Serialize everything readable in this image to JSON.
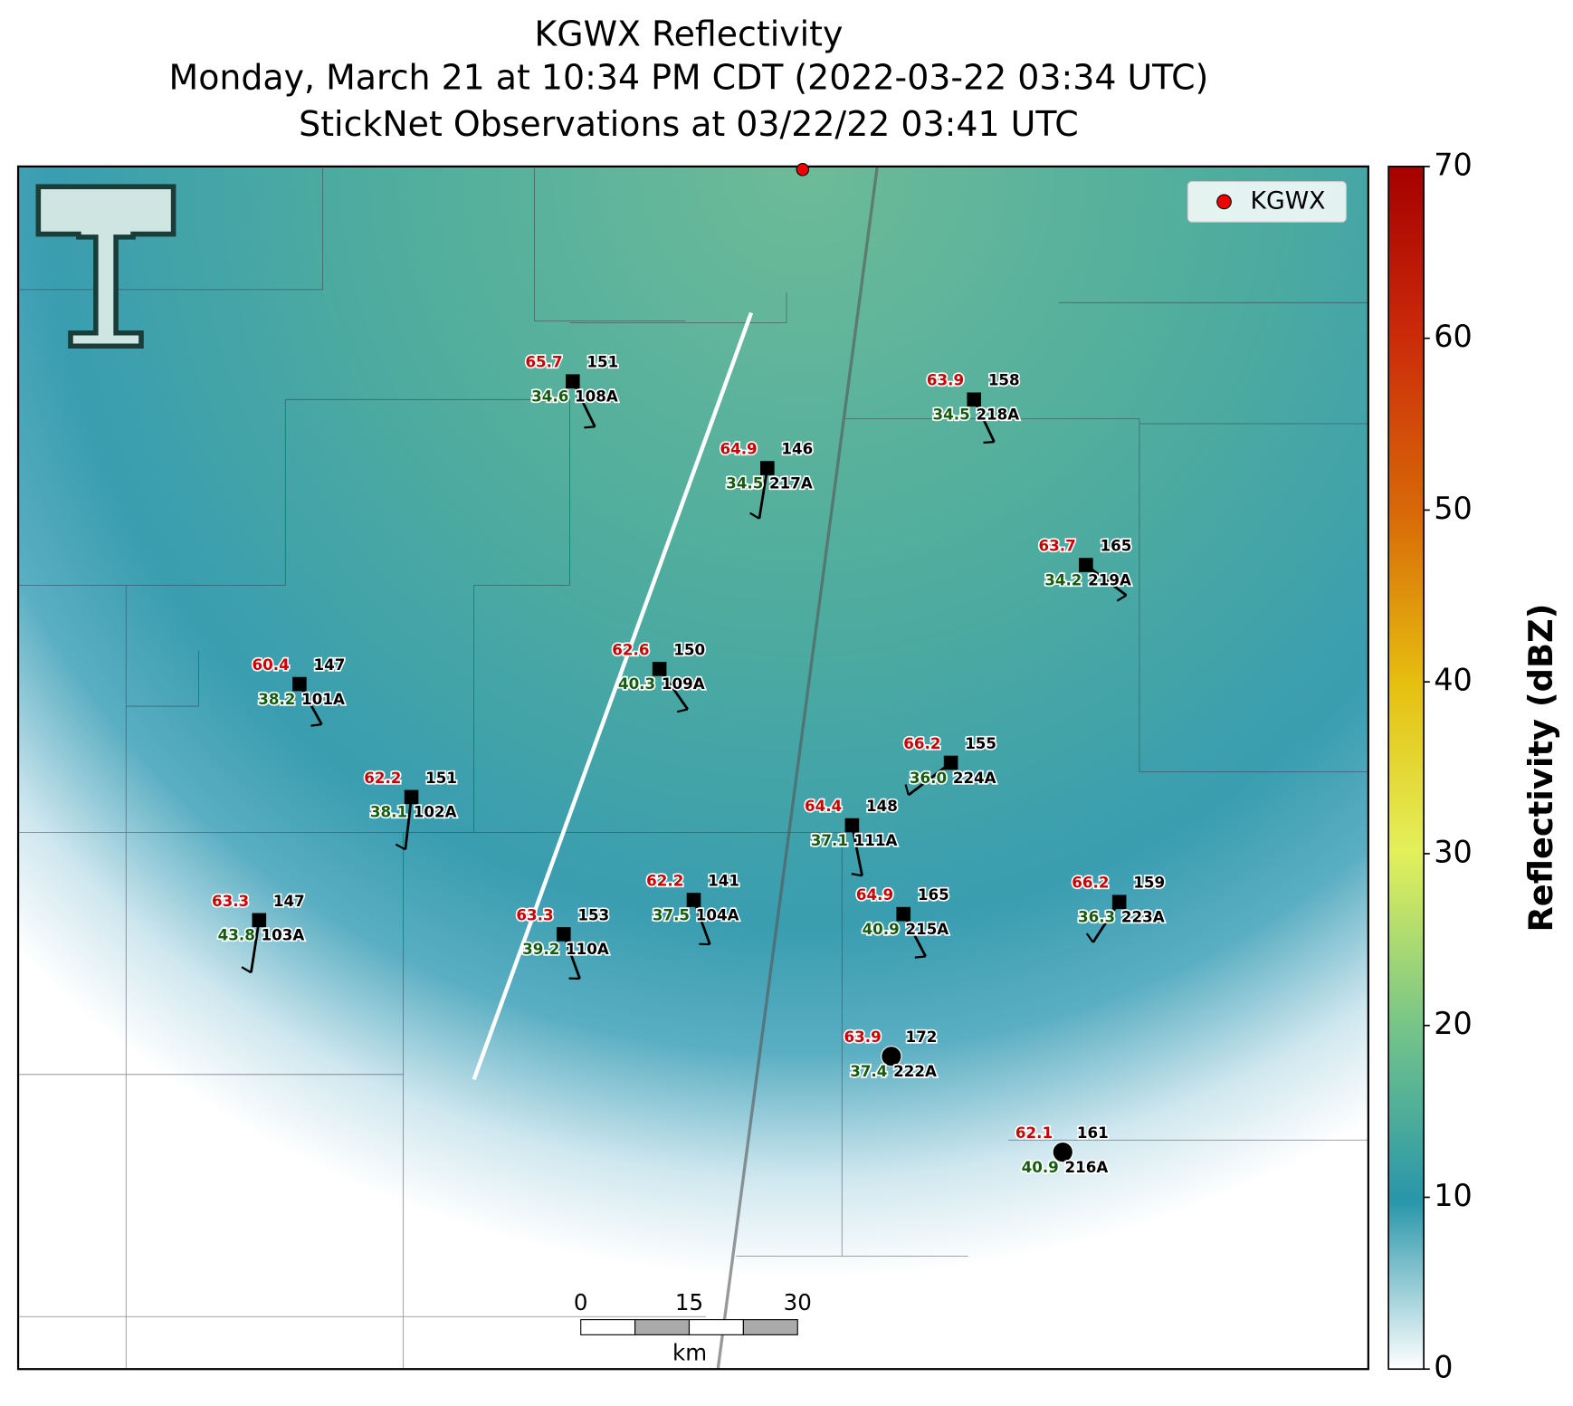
{
  "title": [
    "KGWX Reflectivity",
    "Monday, March 21 at 10:34 PM CDT (2022-03-22 03:34 UTC)",
    "StickNet Observations at 03/22/22 03:41 UTC"
  ],
  "legend": "KGWX",
  "colorbar": {
    "label": "Reflectivity (dBZ)",
    "range": [
      0,
      70
    ],
    "ticks": [
      0,
      10,
      20,
      30,
      40,
      50,
      60,
      70
    ]
  },
  "scale_bar": {
    "ticks": [
      0,
      15,
      30
    ],
    "unit": "km"
  },
  "stations": [
    {
      "id": "108A",
      "temperature": "65.7",
      "dewpoint": "34.6",
      "pressure": "151"
    },
    {
      "id": "218A",
      "temperature": "63.9",
      "dewpoint": "34.5",
      "pressure": "158"
    },
    {
      "id": "217A",
      "temperature": "64.9",
      "dewpoint": "34.5",
      "pressure": "146"
    },
    {
      "id": "219A",
      "temperature": "63.7",
      "dewpoint": "34.2",
      "pressure": "165"
    },
    {
      "id": "109A",
      "temperature": "62.6",
      "dewpoint": "40.3",
      "pressure": "150"
    },
    {
      "id": "101A",
      "temperature": "60.4",
      "dewpoint": "38.2",
      "pressure": "147"
    },
    {
      "id": "224A",
      "temperature": "66.2",
      "dewpoint": "36.0",
      "pressure": "155"
    },
    {
      "id": "102A",
      "temperature": "62.2",
      "dewpoint": "38.1",
      "pressure": "151"
    },
    {
      "id": "111A",
      "temperature": "64.4",
      "dewpoint": "37.1",
      "pressure": "148"
    },
    {
      "id": "104A",
      "temperature": "62.2",
      "dewpoint": "37.5",
      "pressure": "141"
    },
    {
      "id": "223A",
      "temperature": "66.2",
      "dewpoint": "36.3",
      "pressure": "159"
    },
    {
      "id": "215A",
      "temperature": "64.9",
      "dewpoint": "40.9",
      "pressure": "165"
    },
    {
      "id": "103A",
      "temperature": "63.3",
      "dewpoint": "43.8",
      "pressure": "147"
    },
    {
      "id": "110A",
      "temperature": "63.3",
      "dewpoint": "39.2",
      "pressure": "153"
    },
    {
      "id": "222A",
      "temperature": "63.9",
      "dewpoint": "37.4",
      "pressure": "172"
    },
    {
      "id": "216A",
      "temperature": "62.1",
      "dewpoint": "40.9",
      "pressure": "161"
    }
  ]
}
